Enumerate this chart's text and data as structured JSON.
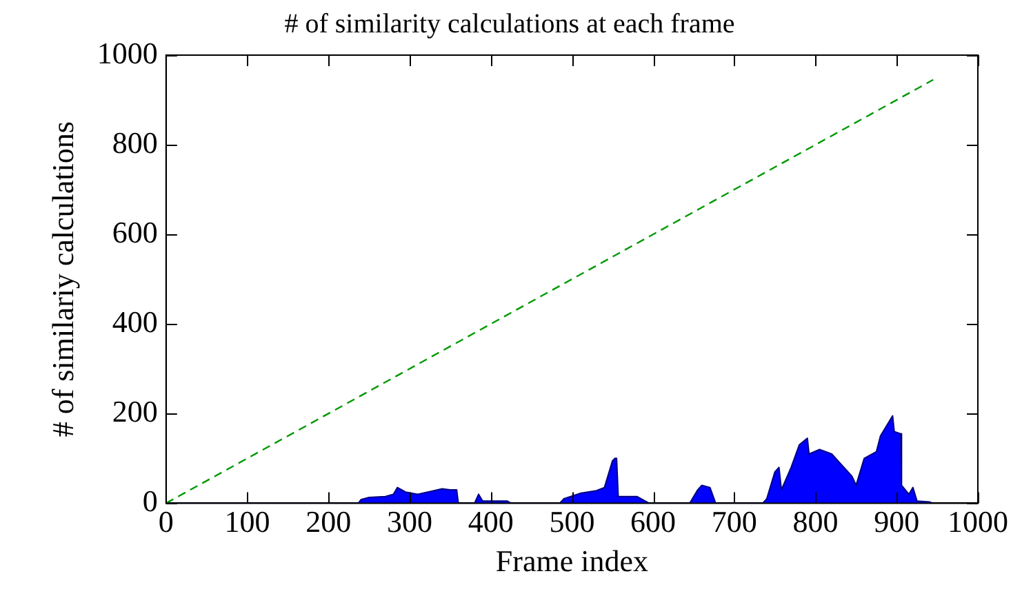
{
  "chart_data": {
    "type": "area",
    "title": "# of similarity calculations at each frame",
    "xlabel": "Frame index",
    "ylabel": "# of similariy calculations",
    "xlim": [
      0,
      1000
    ],
    "ylim": [
      0,
      1000
    ],
    "xticks": [
      0,
      100,
      200,
      300,
      400,
      500,
      600,
      700,
      800,
      900,
      1000
    ],
    "yticks": [
      0,
      200,
      400,
      600,
      800,
      1000
    ],
    "grid": false,
    "legend": false,
    "series": [
      {
        "color": "#0000ff",
        "x": [
          0,
          237,
          240,
          250,
          270,
          280,
          285,
          295,
          310,
          330,
          340,
          350,
          358,
          360,
          380,
          385,
          390,
          400,
          420,
          425,
          485,
          490,
          510,
          530,
          540,
          550,
          553,
          555,
          557,
          580,
          590,
          595,
          645,
          655,
          660,
          670,
          677,
          735,
          740,
          750,
          755,
          758,
          770,
          780,
          790,
          792,
          805,
          820,
          830,
          845,
          850,
          860,
          870,
          875,
          880,
          895,
          897,
          905,
          906,
          915,
          920,
          925,
          940,
          945
        ],
        "values": [
          0,
          0,
          8,
          13,
          15,
          20,
          35,
          25,
          20,
          28,
          32,
          30,
          30,
          0,
          0,
          20,
          5,
          5,
          5,
          0,
          0,
          10,
          22,
          28,
          35,
          95,
          100,
          100,
          15,
          15,
          5,
          0,
          0,
          30,
          40,
          35,
          0,
          0,
          10,
          70,
          80,
          30,
          80,
          130,
          145,
          110,
          120,
          110,
          90,
          60,
          40,
          100,
          110,
          115,
          150,
          195,
          160,
          155,
          40,
          20,
          35,
          5,
          3,
          0
        ]
      },
      {
        "type": "line",
        "color": "#009900",
        "line_style": "dashed",
        "x": [
          0,
          945
        ],
        "values": [
          0,
          945
        ]
      }
    ]
  }
}
